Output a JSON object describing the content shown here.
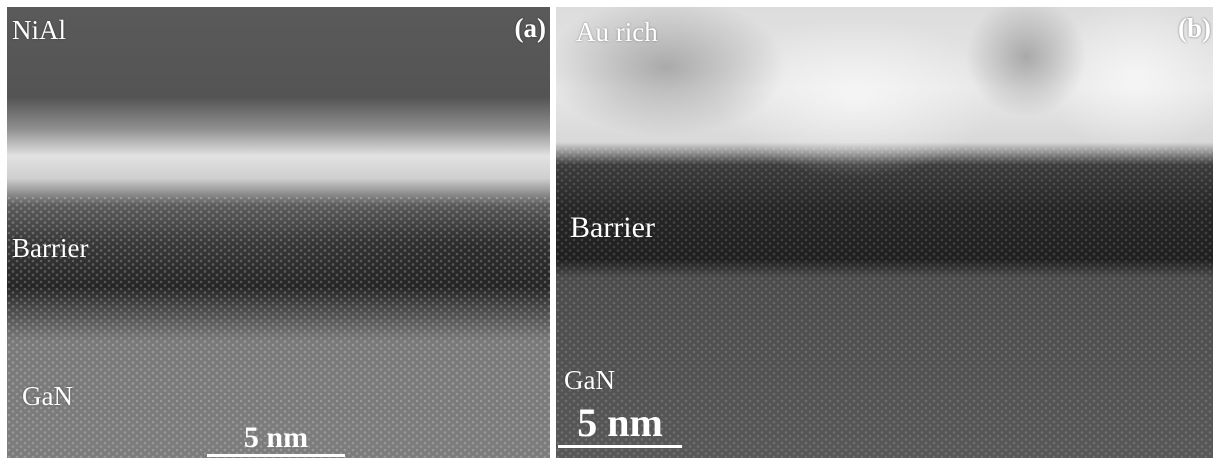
{
  "panel_a": {
    "tag": "(a)",
    "top_layer": "NiAl",
    "middle_layer": "Barrier",
    "bottom_layer": "GaN",
    "scale_bar": "5 nm"
  },
  "panel_b": {
    "tag": "(b)",
    "top_layer": "Au rich",
    "middle_layer": "Barrier",
    "bottom_layer": "GaN",
    "scale_bar": "5 nm"
  }
}
